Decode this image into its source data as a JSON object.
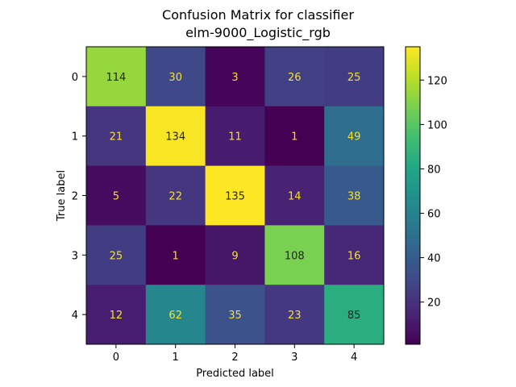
{
  "chart_data": {
    "type": "heatmap",
    "title_lines": [
      "Confusion Matrix for classifier",
      "elm-9000_Logistic_rgb"
    ],
    "xlabel": "Predicted label",
    "ylabel": "True label",
    "x_categories": [
      "0",
      "1",
      "2",
      "3",
      "4"
    ],
    "y_categories": [
      "0",
      "1",
      "2",
      "3",
      "4"
    ],
    "values": [
      [
        114,
        30,
        3,
        26,
        25
      ],
      [
        21,
        134,
        11,
        1,
        49
      ],
      [
        5,
        22,
        135,
        14,
        38
      ],
      [
        25,
        1,
        9,
        108,
        16
      ],
      [
        12,
        62,
        35,
        23,
        85
      ]
    ],
    "colormap": "viridis",
    "color_range": [
      1,
      135
    ],
    "colorbar_ticks": [
      "20",
      "40",
      "60",
      "80",
      "100",
      "120"
    ],
    "colorbar_tick_values": [
      20,
      40,
      60,
      80,
      100,
      120
    ],
    "grid": false
  }
}
